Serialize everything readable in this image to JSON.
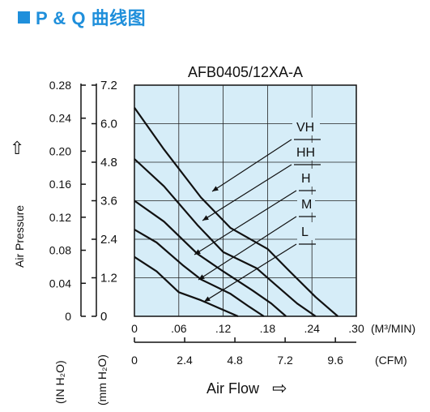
{
  "heading": {
    "text": "P & Q 曲线图",
    "color": "#1f8fdb"
  },
  "chart_data": {
    "type": "line",
    "title": "AFB0405/12XA-A",
    "x_axis": {
      "primary_ticks": [
        "0",
        ".06",
        ".12",
        ".18",
        ".24",
        ".30"
      ],
      "primary_unit": "(M³/MIN)",
      "secondary_ticks": [
        "0",
        "2.4",
        "4.8",
        "7.2",
        "9.6"
      ],
      "secondary_unit": "(CFM)",
      "xlabel": "Air Flow",
      "xlim": [
        0,
        0.3
      ]
    },
    "y_axis": {
      "primary_ticks": [
        "0",
        "0.04",
        "0.08",
        "0.12",
        "0.16",
        "0.20",
        "0.24",
        "0.28"
      ],
      "primary_unit": "(IN H₂O)",
      "secondary_ticks": [
        "0",
        "1.2",
        "2.4",
        "3.6",
        "4.8",
        "6.0",
        "7.2"
      ],
      "secondary_unit": "(mm H₂O)",
      "ylabel": "Air Pressure",
      "ylim": [
        0,
        7.2
      ]
    },
    "grid": true,
    "plot_background": "#d6edf8",
    "series": [
      {
        "name": "VH",
        "points": [
          [
            0,
            6.5
          ],
          [
            0.04,
            5.2
          ],
          [
            0.09,
            3.7
          ],
          [
            0.13,
            2.75
          ],
          [
            0.18,
            2.1
          ],
          [
            0.21,
            1.4
          ],
          [
            0.245,
            0.6
          ],
          [
            0.275,
            0
          ]
        ]
      },
      {
        "name": "HH",
        "points": [
          [
            0,
            4.9
          ],
          [
            0.04,
            4.05
          ],
          [
            0.085,
            2.85
          ],
          [
            0.12,
            2.0
          ],
          [
            0.165,
            1.5
          ],
          [
            0.19,
            1.0
          ],
          [
            0.22,
            0.4
          ],
          [
            0.245,
            0
          ]
        ]
      },
      {
        "name": "H",
        "points": [
          [
            0,
            3.6
          ],
          [
            0.04,
            2.95
          ],
          [
            0.085,
            1.95
          ],
          [
            0.12,
            1.4
          ],
          [
            0.16,
            0.8
          ],
          [
            0.185,
            0.4
          ],
          [
            0.205,
            0
          ]
        ]
      },
      {
        "name": "M",
        "points": [
          [
            0,
            2.7
          ],
          [
            0.03,
            2.3
          ],
          [
            0.065,
            1.6
          ],
          [
            0.09,
            1.15
          ],
          [
            0.13,
            0.7
          ],
          [
            0.155,
            0.3
          ],
          [
            0.175,
            0
          ]
        ]
      },
      {
        "name": "L",
        "points": [
          [
            0,
            1.85
          ],
          [
            0.03,
            1.4
          ],
          [
            0.06,
            0.75
          ],
          [
            0.09,
            0.5
          ],
          [
            0.115,
            0.25
          ],
          [
            0.14,
            0
          ]
        ]
      }
    ],
    "curve_labels": [
      "VH",
      "HH",
      "H",
      "M",
      "L"
    ],
    "pressure_arrow": "⇧",
    "flow_arrow": "⇨"
  }
}
